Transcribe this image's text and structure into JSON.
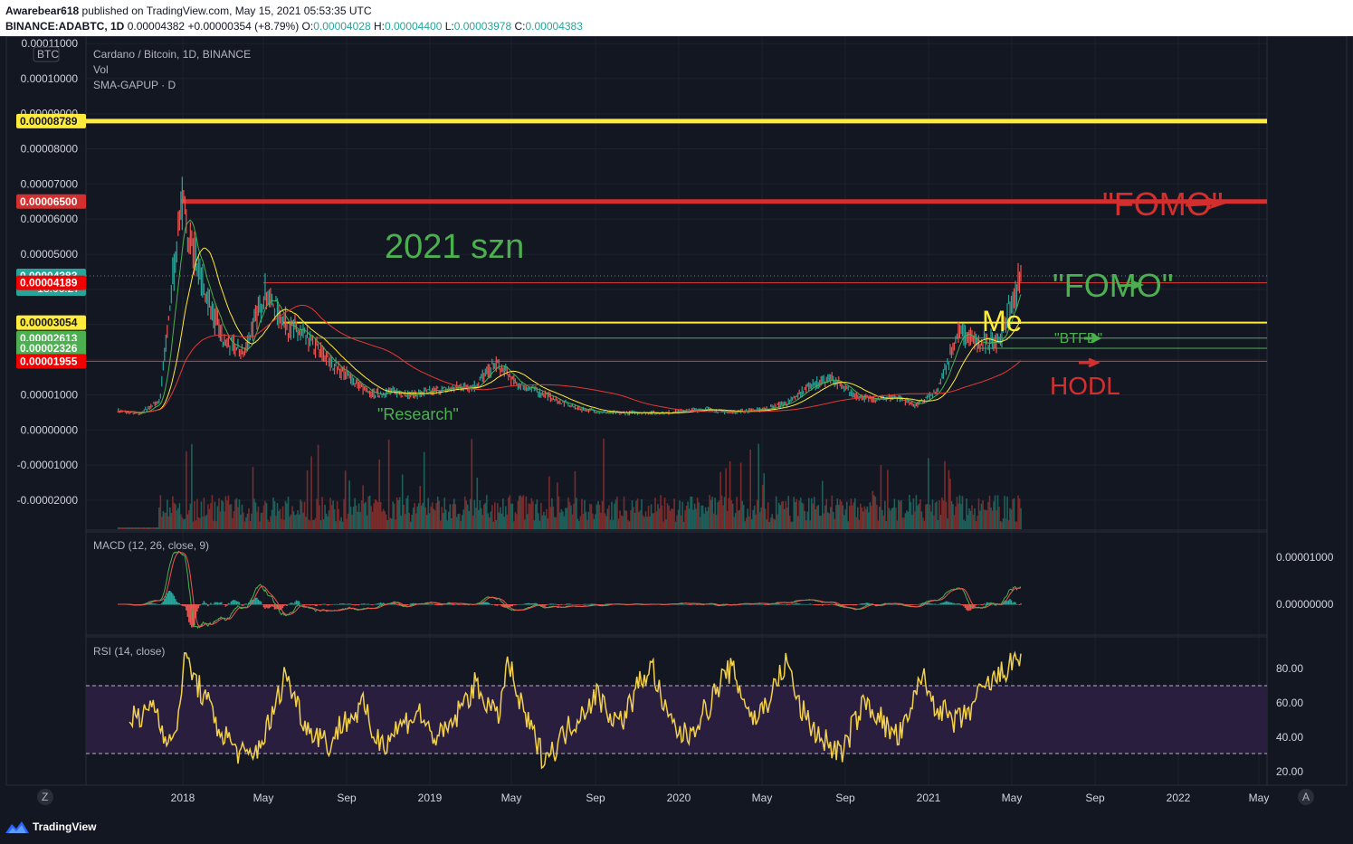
{
  "header": {
    "author": "Awarebear618",
    "published": "published on TradingView.com, May 15, 2021 05:53:35 UTC",
    "symbol": "BINANCE:ADABTC, 1D",
    "last": "0.00004382",
    "change": "+0.00000354 (+8.79%)",
    "o_label": "O:",
    "o": "0.00004028",
    "h_label": "H:",
    "h": "0.00004400",
    "l_label": "L:",
    "l": "0.00003978",
    "c_label": "C:",
    "c": "0.00004383"
  },
  "legend": {
    "title": "Cardano / Bitcoin, 1D, BINANCE",
    "vol": "Vol",
    "sma": "SMA-GAPUP · D",
    "currency": "BTC",
    "macd": "MACD (12, 26, close, 9)",
    "rsi": "RSI (14, close)"
  },
  "colors": {
    "background": "#131722",
    "grid": "#1e222d",
    "up": "#26a69a",
    "down": "#ef5350",
    "yellow_line": "#ffeb3b",
    "red_line": "#d32f2f",
    "green_line": "#4caf50",
    "rsi_band": "#2a1e3f",
    "rsi_line": "#f2d049"
  },
  "chart_data": [
    {
      "type": "line",
      "name": "price",
      "x": [
        "2017-09",
        "2017-11",
        "2017-12",
        "2018-01",
        "2018-02",
        "2018-03",
        "2018-04",
        "2018-05",
        "2018-06",
        "2018-07",
        "2018-08",
        "2018-09",
        "2018-10",
        "2018-11",
        "2018-12",
        "2019-01",
        "2019-02",
        "2019-03",
        "2019-04",
        "2019-05",
        "2019-06",
        "2019-07",
        "2019-08",
        "2019-09",
        "2019-10",
        "2019-11",
        "2019-12",
        "2020-01",
        "2020-02",
        "2020-03",
        "2020-04",
        "2020-05",
        "2020-06",
        "2020-07",
        "2020-08",
        "2020-09",
        "2020-10",
        "2020-11",
        "2020-12",
        "2021-01",
        "2021-02",
        "2021-03",
        "2021-04",
        "2021-05"
      ],
      "price_values": [
        5.5e-06,
        4.5e-06,
        8.5e-06,
        6.5e-05,
        4.2e-05,
        2.5e-05,
        2.2e-05,
        3.95e-05,
        3e-05,
        2.6e-05,
        2e-05,
        1.5e-05,
        1e-05,
        1.1e-05,
        1e-05,
        1.1e-05,
        1.2e-05,
        1.25e-05,
        1.9e-05,
        1.3e-05,
        1.1e-05,
        8e-06,
        6e-06,
        5e-06,
        4.8e-06,
        5e-06,
        4.8e-06,
        5.5e-06,
        6e-06,
        5e-06,
        5.5e-06,
        6.2e-06,
        8e-06,
        1.3e-05,
        1.45e-05,
        1e-05,
        8.5e-06,
        9.5e-06,
        7e-06,
        1.1e-05,
        2.8e-05,
        2.4e-05,
        2.6e-05,
        4.38e-05
      ],
      "y_ticks": [
        "0.00011000",
        "0.00010000",
        "0.00009000",
        "0.00008000",
        "0.00007000",
        "0.00006000",
        "0.00005000",
        "0.00004000",
        "0.00003000",
        "0.00002000",
        "0.00001000",
        "0.00000000",
        "-0.00001000",
        "-0.00002000"
      ],
      "price_labels": [
        {
          "value": "0.00008789",
          "color": "#ffeb3b",
          "text_color": "#131722"
        },
        {
          "value": "0.00006500",
          "color": "#d32f2f",
          "text_color": "#ffffff"
        },
        {
          "value": "0.00004383",
          "color": "#26a69a",
          "text_color": "#ffffff",
          "sub": "18:06:27"
        },
        {
          "value": "0.00004189",
          "color": "#f00000",
          "text_color": "#ffffff"
        },
        {
          "value": "0.00003054",
          "color": "#ffeb3b",
          "text_color": "#131722"
        },
        {
          "value": "0.00002613",
          "color": "#4caf50",
          "text_color": "#ffffff"
        },
        {
          "value": "0.00002326",
          "color": "#4caf50",
          "text_color": "#ffffff"
        },
        {
          "value": "0.00001955",
          "color": "#f00000",
          "text_color": "#ffffff"
        }
      ],
      "horizontal_lines": [
        {
          "price": 8.789e-05,
          "color": "#ffeb3b"
        },
        {
          "price": 6.5e-05,
          "color": "#d32f2f"
        },
        {
          "price": 4.189e-05,
          "color": "#e53935"
        },
        {
          "price": 3.054e-05,
          "color": "#ffeb3b"
        },
        {
          "price": 2.613e-05,
          "color": "#4caf50"
        },
        {
          "price": 2.326e-05,
          "color": "#4caf50"
        },
        {
          "price": 1.955e-05,
          "color": "#e53935"
        }
      ],
      "annotations": [
        {
          "text": "2021 szn",
          "color": "#4caf50"
        },
        {
          "text": "\"Research\"",
          "color": "#4caf50"
        },
        {
          "text": "\"FOMO\"",
          "color": "#d32f2f"
        },
        {
          "text": "\"FOMO\"",
          "color": "#4caf50"
        },
        {
          "text": "Me",
          "color": "#ffeb3b"
        },
        {
          "text": "\"BTFD\"",
          "color": "#4caf50"
        },
        {
          "text": "HODL",
          "color": "#d32f2f"
        }
      ]
    },
    {
      "type": "bar",
      "name": "MACD",
      "y_ticks": [
        "0.00001000",
        "0.00000000"
      ]
    },
    {
      "type": "line",
      "name": "RSI",
      "y_ticks": [
        "80.00",
        "60.00",
        "40.00",
        "20.00"
      ],
      "upper_band": 70,
      "lower_band": 30,
      "values": [
        55,
        48,
        62,
        45,
        35,
        88,
        72,
        60,
        45,
        38,
        30,
        28,
        40,
        55,
        78,
        60,
        45,
        42,
        35,
        48,
        52,
        58,
        40,
        38,
        45,
        50,
        55,
        42,
        40,
        48,
        60,
        70,
        62,
        50,
        84,
        60,
        45,
        30,
        32,
        42,
        50,
        58,
        65,
        55,
        48,
        60,
        75,
        80,
        55,
        45,
        40,
        50,
        58,
        72,
        80,
        65,
        50,
        58,
        70,
        85,
        60,
        48,
        40,
        35,
        30,
        48,
        60,
        55,
        45,
        40,
        50,
        78,
        62,
        55,
        48,
        52,
        62,
        70,
        75,
        82,
        88
      ],
      "ylim": [
        15,
        90
      ]
    }
  ],
  "x_axis": [
    "2018",
    "May",
    "Sep",
    "2019",
    "May",
    "Sep",
    "2020",
    "May",
    "Sep",
    "2021",
    "May",
    "Sep",
    "2022",
    "May"
  ],
  "footer": {
    "brand": "TradingView",
    "z_btn": "Z",
    "a_btn": "A"
  }
}
